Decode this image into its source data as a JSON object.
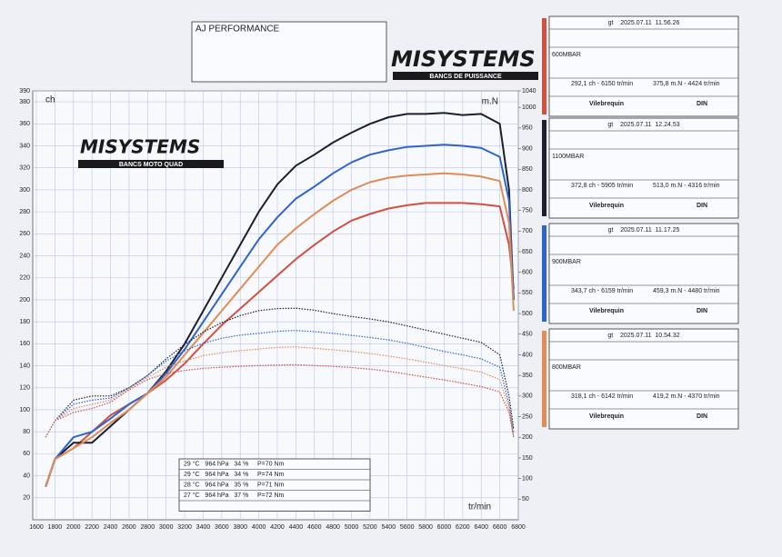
{
  "chart_data": {
    "type": "line",
    "x_label": "tr/min",
    "y_label": "ch",
    "y2_label": "m.N",
    "x": [
      1700,
      1800,
      2000,
      2200,
      2400,
      2600,
      2800,
      3000,
      3200,
      3400,
      3600,
      3800,
      4000,
      4200,
      4400,
      4600,
      4800,
      5000,
      5200,
      5400,
      5600,
      5800,
      6000,
      6200,
      6400,
      6600,
      6700,
      6750
    ],
    "xlim": [
      1600,
      6800
    ],
    "xticks": [
      1600,
      1800,
      2000,
      2200,
      2400,
      2600,
      2800,
      3000,
      3200,
      3400,
      3600,
      3800,
      4000,
      4200,
      4400,
      4600,
      4800,
      5000,
      5200,
      5400,
      5600,
      5800,
      6000,
      6200,
      6400,
      6600,
      6800
    ],
    "ylim": [
      0,
      390
    ],
    "yticks": [
      20,
      40,
      60,
      80,
      100,
      120,
      140,
      160,
      180,
      200,
      220,
      240,
      260,
      280,
      300,
      320,
      340,
      360,
      380,
      390
    ],
    "y2lim": [
      0,
      1040
    ],
    "y2ticks": [
      50,
      100,
      150,
      200,
      250,
      300,
      350,
      400,
      450,
      500,
      550,
      600,
      650,
      700,
      750,
      800,
      850,
      900,
      950,
      1000,
      1040
    ],
    "grid": true,
    "series": [
      {
        "color": "#d2503f",
        "values": [
          30,
          55,
          65,
          80,
          95,
          105,
          115,
          127,
          142,
          160,
          177,
          192,
          207,
          222,
          237,
          250,
          262,
          272,
          278,
          283,
          286,
          288,
          288,
          288,
          287,
          285,
          250,
          210
        ]
      },
      {
        "color": "#1c1f2e",
        "values": [
          30,
          55,
          70,
          70,
          85,
          100,
          115,
          135,
          160,
          190,
          220,
          250,
          280,
          305,
          322,
          332,
          343,
          352,
          360,
          366,
          369,
          369,
          370,
          368,
          369,
          360,
          300,
          200
        ]
      },
      {
        "color": "#2e64d0",
        "values": [
          30,
          55,
          75,
          80,
          92,
          105,
          115,
          133,
          155,
          180,
          205,
          230,
          255,
          275,
          292,
          303,
          315,
          325,
          332,
          336,
          339,
          340,
          341,
          340,
          338,
          330,
          290,
          200
        ]
      },
      {
        "color": "#e08c55",
        "values": [
          30,
          55,
          65,
          75,
          88,
          100,
          115,
          130,
          150,
          170,
          190,
          210,
          230,
          250,
          265,
          278,
          290,
          300,
          307,
          311,
          313,
          314,
          315,
          314,
          312,
          308,
          270,
          190
        ]
      },
      {
        "color": "#d2503f",
        "axis": "y2",
        "dashed": true,
        "values": [
          200,
          240,
          260,
          270,
          285,
          315,
          340,
          355,
          362,
          367,
          370,
          372,
          374,
          375,
          375.8,
          374,
          372,
          369,
          365,
          360,
          353,
          346,
          339,
          331,
          323,
          310,
          260,
          200
        ]
      },
      {
        "color": "#1c1f2e",
        "axis": "y2",
        "dashed": true,
        "values": [
          200,
          240,
          290,
          300,
          300,
          320,
          350,
          390,
          425,
          455,
          478,
          495,
          507,
          512,
          513,
          508,
          500,
          493,
          487,
          480,
          470,
          460,
          450,
          440,
          430,
          400,
          300,
          220
        ]
      },
      {
        "color": "#2e64d0",
        "axis": "y2",
        "dashed": true,
        "values": [
          200,
          240,
          280,
          290,
          295,
          320,
          350,
          385,
          410,
          428,
          440,
          448,
          452,
          457,
          459,
          456,
          452,
          447,
          442,
          436,
          428,
          418,
          408,
          400,
          390,
          370,
          280,
          210
        ]
      },
      {
        "color": "#e08c55",
        "axis": "y2",
        "dashed": true,
        "values": [
          200,
          240,
          270,
          280,
          290,
          318,
          345,
          370,
          385,
          398,
          405,
          410,
          414,
          418,
          419,
          416,
          412,
          408,
          403,
          397,
          390,
          382,
          374,
          366,
          358,
          340,
          270,
          200
        ]
      }
    ]
  },
  "header": {
    "title": "AJ PERFORMANCE"
  },
  "logo": {
    "brand": "MISYSTEMS",
    "tagline": "BANCS DE PUISSANCE",
    "chart_brand": "MISYSTEMS",
    "chart_tagline": "BANCS MOTO QUAD"
  },
  "conditions": [
    "29 °C   964 hPa   34 %     P=70 Nm",
    "29 °C   964 hPa   34 %     P=74 Nm",
    "28 °C   964 hPa   35 %     P=71 Nm",
    "27 °C   964 hPa   37 %     P=72 Nm"
  ],
  "runs": [
    {
      "date": "gt    2025.07.11  11.56.26",
      "name": "600MBAR",
      "power": "292,1 ch - 6150 tr/min",
      "torque": "375,8 m.N - 4424 tr/min",
      "crank": "Vilebrequin",
      "standard": "DIN",
      "color": "#d2503f"
    },
    {
      "date": "gt    2025.07.11  12.24.53",
      "name": "1100MBAR",
      "power": "372,8 ch - 5905 tr/min",
      "torque": "513,0 m.N - 4316 tr/min",
      "crank": "Vilebrequin",
      "standard": "DIN",
      "color": "#1c1f2e"
    },
    {
      "date": "gt    2025.07.11  11.17.25",
      "name": "900MBAR",
      "power": "343,7 ch - 6159 tr/min",
      "torque": "459,3 m.N - 4480 tr/min",
      "crank": "Vilebrequin",
      "standard": "DIN",
      "color": "#2e64d0"
    },
    {
      "date": "gt    2025.07.11  10.54.32",
      "name": "800MBAR",
      "power": "318,1 ch - 6142 tr/min",
      "torque": "419,2 m.N - 4370 tr/min",
      "crank": "Vilebrequin",
      "standard": "DIN",
      "color": "#e08c55"
    }
  ]
}
